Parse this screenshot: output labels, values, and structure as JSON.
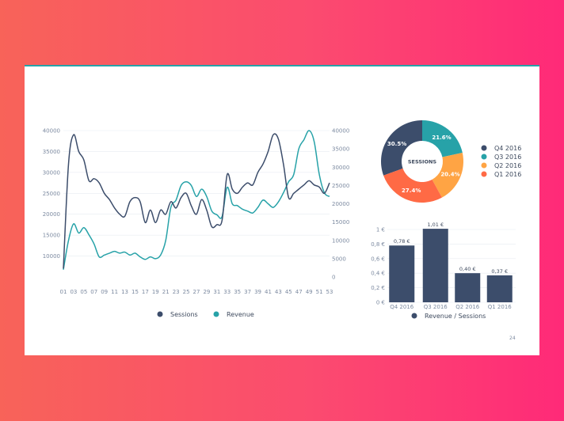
{
  "colors": {
    "navy": "#3c4d6b",
    "teal": "#27a2a8",
    "orange": "#ffa444",
    "coral": "#ff6a45",
    "grid": "#e8ecf1"
  },
  "page_number": "24",
  "chart_data": [
    {
      "type": "line",
      "title": "",
      "x": [
        "01",
        "02",
        "03",
        "04",
        "05",
        "06",
        "07",
        "08",
        "09",
        "10",
        "11",
        "12",
        "13",
        "14",
        "15",
        "16",
        "17",
        "18",
        "19",
        "20",
        "21",
        "22",
        "23",
        "24",
        "25",
        "26",
        "27",
        "28",
        "29",
        "30",
        "31",
        "32",
        "33",
        "34",
        "35",
        "36",
        "37",
        "38",
        "39",
        "40",
        "41",
        "42",
        "43",
        "44",
        "45",
        "46",
        "47",
        "48",
        "49",
        "50",
        "51",
        "52",
        "53"
      ],
      "x_tick_labels": [
        "01",
        "03",
        "05",
        "07",
        "09",
        "11",
        "13",
        "15",
        "17",
        "19",
        "21",
        "23",
        "25",
        "27",
        "29",
        "31",
        "33",
        "35",
        "37",
        "39",
        "41",
        "43",
        "45",
        "47",
        "49",
        "51",
        "53"
      ],
      "series": [
        {
          "name": "Sessions",
          "axis": "left",
          "color": "#3c4d6b",
          "values": [
            7000,
            32000,
            39000,
            35000,
            33000,
            28000,
            28500,
            27500,
            25000,
            23500,
            21500,
            20000,
            19500,
            23000,
            24000,
            23000,
            18000,
            21000,
            18000,
            21000,
            20000,
            23000,
            21500,
            24000,
            25000,
            22000,
            20000,
            23500,
            21000,
            17000,
            17500,
            18500,
            29500,
            26000,
            25000,
            26500,
            27500,
            27000,
            30000,
            32000,
            35000,
            39000,
            38000,
            32000,
            24000,
            25000,
            26000,
            27000,
            28000,
            27000,
            26500,
            25000,
            27500
          ],
          "ylim": [
            5000,
            40000
          ],
          "y_ticks": [
            10000,
            15000,
            20000,
            25000,
            30000,
            35000,
            40000
          ]
        },
        {
          "name": "Revenue",
          "axis": "right",
          "color": "#27a2a8",
          "values": [
            2000,
            10000,
            14500,
            12000,
            13500,
            11500,
            9000,
            5500,
            6000,
            6500,
            7000,
            6500,
            6800,
            6000,
            6500,
            5500,
            4800,
            5500,
            5000,
            6000,
            10000,
            19000,
            21000,
            25000,
            26000,
            25000,
            22000,
            24000,
            22000,
            18000,
            17000,
            16500,
            24500,
            20000,
            19500,
            18500,
            18000,
            17500,
            19000,
            21000,
            20000,
            19000,
            20500,
            23000,
            26000,
            28000,
            35000,
            37500,
            40000,
            37000,
            28000,
            23000,
            22000
          ],
          "ylim": [
            0,
            40000
          ],
          "y_ticks": [
            0,
            5000,
            10000,
            15000,
            20000,
            25000,
            30000,
            35000,
            40000
          ]
        }
      ],
      "legend": [
        "Sessions",
        "Revenue"
      ],
      "legend_position": "bottom",
      "grid": true
    },
    {
      "type": "pie",
      "center_label": "SESSIONS",
      "slices": [
        {
          "label": "Q4 2016",
          "value": 30.5,
          "text": "30.5%",
          "color": "#3c4d6b"
        },
        {
          "label": "Q3 2016",
          "value": 21.6,
          "text": "21.6%",
          "color": "#27a2a8"
        },
        {
          "label": "Q2 2016",
          "value": 20.4,
          "text": "20.4%",
          "color": "#ffa444"
        },
        {
          "label": "Q1 2016",
          "value": 27.4,
          "text": "27.4%",
          "color": "#ff6a45"
        }
      ],
      "legend_position": "right"
    },
    {
      "type": "bar",
      "categories": [
        "Q4 2016",
        "Q3 2016",
        "Q2 2016",
        "Q1 2016"
      ],
      "values": [
        0.78,
        1.01,
        0.4,
        0.37
      ],
      "value_labels": [
        "0,78 €",
        "1,01 €",
        "0,40 €",
        "0,37 €"
      ],
      "y_tick_labels": [
        "0 €",
        "0,2 €",
        "0,4 €",
        "0,6 €",
        "0,8 €",
        "1 €"
      ],
      "ylim": [
        0,
        1.0
      ],
      "legend": [
        "Revenue / Sessions"
      ],
      "color": "#3c4d6b",
      "grid": true
    }
  ]
}
